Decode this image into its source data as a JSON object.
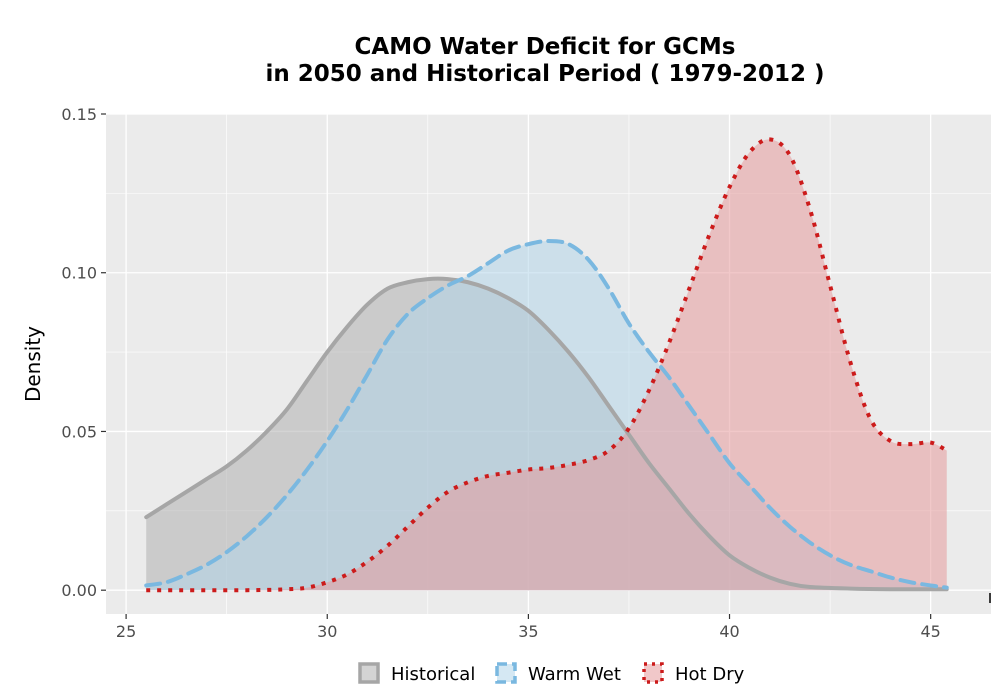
{
  "chart_data": {
    "type": "area",
    "title_lines": [
      "CAMO  Water Deficit for GCMs",
      "in 2050 and Historical Period ( 1979-2012 )"
    ],
    "xlabel": "",
    "ylabel": "Density",
    "xlim": [
      24.5,
      46.5
    ],
    "ylim": [
      -0.0075,
      0.15
    ],
    "xticks": [
      25,
      30,
      35,
      40,
      45
    ],
    "yticks": [
      0.0,
      0.05,
      0.1,
      0.15
    ],
    "ytick_labels": [
      "0.00",
      "0.05",
      "0.10",
      "0.15"
    ],
    "grid": true,
    "legend_position": "bottom",
    "series": [
      {
        "name": "Historical",
        "fill": "#b0b0b0",
        "stroke": "#a6a6a6",
        "dash": "solid",
        "points": [
          [
            25.5,
            0.023
          ],
          [
            26,
            0.027
          ],
          [
            26.5,
            0.031
          ],
          [
            27,
            0.035
          ],
          [
            27.5,
            0.039
          ],
          [
            28,
            0.044
          ],
          [
            28.5,
            0.05
          ],
          [
            29,
            0.057
          ],
          [
            29.5,
            0.066
          ],
          [
            30,
            0.075
          ],
          [
            30.5,
            0.083
          ],
          [
            31,
            0.09
          ],
          [
            31.5,
            0.095
          ],
          [
            32,
            0.097
          ],
          [
            32.5,
            0.098
          ],
          [
            33,
            0.098
          ],
          [
            33.5,
            0.097
          ],
          [
            34,
            0.095
          ],
          [
            34.5,
            0.092
          ],
          [
            35,
            0.088
          ],
          [
            35.5,
            0.082
          ],
          [
            36,
            0.075
          ],
          [
            36.5,
            0.067
          ],
          [
            37,
            0.058
          ],
          [
            37.5,
            0.049
          ],
          [
            38,
            0.04
          ],
          [
            38.5,
            0.032
          ],
          [
            39,
            0.024
          ],
          [
            39.5,
            0.017
          ],
          [
            40,
            0.011
          ],
          [
            40.5,
            0.007
          ],
          [
            41,
            0.004
          ],
          [
            41.5,
            0.002
          ],
          [
            42,
            0.001
          ],
          [
            43,
            0.0005
          ],
          [
            44,
            0.0003
          ],
          [
            45.4,
            0.0003
          ]
        ]
      },
      {
        "name": "Warm Wet",
        "fill": "#b3d6ea",
        "stroke": "#7ab8e0",
        "dash": "dashed",
        "points": [
          [
            25.5,
            0.0015
          ],
          [
            26,
            0.0025
          ],
          [
            26.5,
            0.005
          ],
          [
            27,
            0.008
          ],
          [
            27.5,
            0.012
          ],
          [
            28,
            0.017
          ],
          [
            28.5,
            0.023
          ],
          [
            29,
            0.03
          ],
          [
            29.5,
            0.038
          ],
          [
            30,
            0.047
          ],
          [
            30.5,
            0.057
          ],
          [
            31,
            0.068
          ],
          [
            31.5,
            0.079
          ],
          [
            32,
            0.087
          ],
          [
            32.5,
            0.092
          ],
          [
            33,
            0.096
          ],
          [
            33.5,
            0.099
          ],
          [
            34,
            0.103
          ],
          [
            34.5,
            0.107
          ],
          [
            35,
            0.109
          ],
          [
            35.5,
            0.11
          ],
          [
            36,
            0.109
          ],
          [
            36.5,
            0.104
          ],
          [
            37,
            0.095
          ],
          [
            37.5,
            0.084
          ],
          [
            38,
            0.075
          ],
          [
            38.5,
            0.067
          ],
          [
            39,
            0.058
          ],
          [
            39.5,
            0.049
          ],
          [
            40,
            0.04
          ],
          [
            40.5,
            0.033
          ],
          [
            41,
            0.026
          ],
          [
            41.5,
            0.02
          ],
          [
            42,
            0.015
          ],
          [
            42.5,
            0.011
          ],
          [
            43,
            0.008
          ],
          [
            43.5,
            0.006
          ],
          [
            44,
            0.004
          ],
          [
            44.5,
            0.0025
          ],
          [
            45,
            0.0015
          ],
          [
            45.4,
            0.0008
          ]
        ]
      },
      {
        "name": "Hot Dry",
        "fill": "#e59a9c",
        "stroke": "#cc1b1b",
        "dash": "dotted",
        "points": [
          [
            25.5,
            0.0
          ],
          [
            28,
            0.0
          ],
          [
            29,
            0.0003
          ],
          [
            29.5,
            0.0008
          ],
          [
            30,
            0.0025
          ],
          [
            30.5,
            0.005
          ],
          [
            31,
            0.009
          ],
          [
            31.5,
            0.014
          ],
          [
            32,
            0.02
          ],
          [
            32.5,
            0.026
          ],
          [
            33,
            0.031
          ],
          [
            33.5,
            0.034
          ],
          [
            34,
            0.036
          ],
          [
            34.5,
            0.037
          ],
          [
            35,
            0.038
          ],
          [
            35.5,
            0.0385
          ],
          [
            36,
            0.0395
          ],
          [
            36.5,
            0.041
          ],
          [
            37,
            0.044
          ],
          [
            37.5,
            0.051
          ],
          [
            38,
            0.063
          ],
          [
            38.5,
            0.078
          ],
          [
            39,
            0.095
          ],
          [
            39.5,
            0.112
          ],
          [
            40,
            0.127
          ],
          [
            40.5,
            0.138
          ],
          [
            41,
            0.142
          ],
          [
            41.5,
            0.137
          ],
          [
            42,
            0.12
          ],
          [
            42.5,
            0.096
          ],
          [
            43,
            0.072
          ],
          [
            43.5,
            0.054
          ],
          [
            44,
            0.047
          ],
          [
            44.5,
            0.046
          ],
          [
            45,
            0.0465
          ],
          [
            45.4,
            0.044
          ]
        ]
      }
    ]
  }
}
